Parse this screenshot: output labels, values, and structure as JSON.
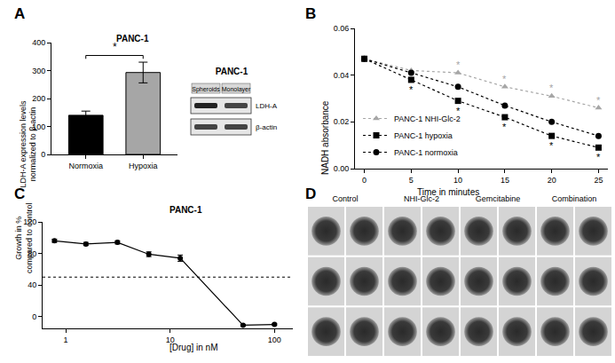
{
  "chart_data": [
    {
      "panel": "A",
      "type": "bar",
      "title": "PANC-1",
      "y_label": [
        "LDH-A expression levels",
        "normalized to β-actin"
      ],
      "categories": [
        "Normoxia",
        "Hypoxia"
      ],
      "values": [
        140,
        293
      ],
      "errors": [
        15,
        37
      ],
      "colors": [
        "#000000",
        "#a6a6a6"
      ],
      "ylim": [
        0,
        400
      ],
      "yticks": [
        0,
        100,
        200,
        300,
        400
      ],
      "significance": {
        "between": [
          "Normoxia",
          "Hypoxia"
        ],
        "text": "*"
      }
    },
    {
      "panel": "B",
      "type": "line",
      "x_label": "Time in minutes",
      "y_label": "NADH absorbance",
      "x": [
        0,
        5,
        10,
        15,
        20,
        25
      ],
      "series": [
        {
          "name": "PANC-1 NHI-Glc-2",
          "color": "#a6a6a6",
          "marker": "triangle-up",
          "line_style": "dot",
          "values": [
            0.047,
            0.042,
            0.041,
            0.035,
            0.031,
            0.026
          ],
          "significance": [
            null,
            null,
            "*",
            "*",
            "*",
            "*"
          ]
        },
        {
          "name": "PANC-1 hypoxia",
          "color": "#000000",
          "marker": "square",
          "line_style": "dot",
          "values": [
            0.047,
            0.038,
            0.029,
            0.022,
            0.014,
            0.009
          ],
          "significance": [
            null,
            "*",
            "*",
            "*",
            "*",
            "*"
          ]
        },
        {
          "name": "PANC-1 normoxia",
          "color": "#000000",
          "marker": "circle",
          "line_style": "dot",
          "values": [
            0.047,
            0.041,
            0.035,
            0.027,
            0.02,
            0.014
          ]
        }
      ],
      "xlim": [
        -1,
        26
      ],
      "xticks": [
        0,
        5,
        10,
        15,
        20,
        25
      ],
      "ylim": [
        0,
        0.06
      ],
      "yticks": [
        {
          "value": 0,
          "label": "0.00"
        },
        0.02,
        0.04,
        0.06
      ],
      "legend": "bottom-left"
    },
    {
      "panel": "C",
      "type": "scatter",
      "title": "PANC-1",
      "x_label": "[Drug] in nM",
      "y_label": [
        "Growth in %",
        "compared to control"
      ],
      "x": [
        0.78,
        1.56,
        3.13,
        6.25,
        12.5,
        50,
        100
      ],
      "values": [
        96,
        92,
        94,
        79,
        74,
        -11,
        -10
      ],
      "errors": [
        2,
        2,
        2,
        3,
        4,
        1,
        1
      ],
      "color": "#000000",
      "marker": "circle",
      "log": "x",
      "xlim": [
        0.6,
        150
      ],
      "xticks": [
        1,
        10,
        100
      ],
      "ylim": [
        -15,
        120
      ],
      "yticks": [
        0,
        40,
        80,
        120
      ],
      "reference_line": 50
    }
  ],
  "blot": {
    "title": "PANC-1",
    "columns": [
      "Spheroids",
      "Monolayer"
    ],
    "rows": [
      "LDH-A",
      "β-actin"
    ]
  },
  "spheroids": {
    "panel": "D",
    "columns": [
      "Control",
      "NHI-Glc-2",
      "Gemcitabine",
      "Combination"
    ],
    "rows": 3,
    "replicates": 2
  }
}
